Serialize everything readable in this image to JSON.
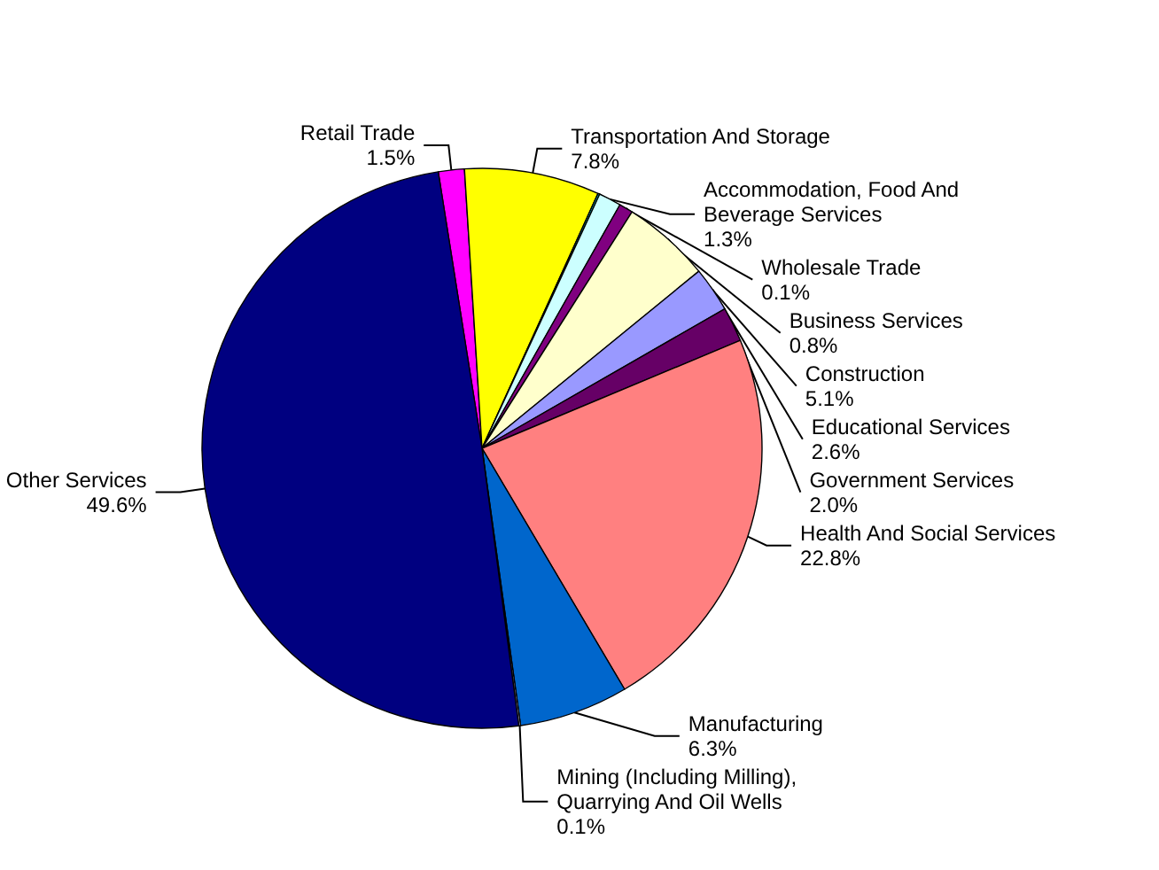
{
  "chart_data": {
    "type": "pie",
    "categories": [
      "Retail Trade",
      "Transportation And Storage",
      "Wholesale Trade",
      "Accommodation, Food And\nBeverage Services",
      "Business Services",
      "Construction",
      "Educational Services",
      "Government Services",
      "Health And Social Services",
      "Manufacturing",
      "Mining (Including Milling),\nQuarrying And Oil Wells",
      "Other Services"
    ],
    "values": [
      1.5,
      7.8,
      0.1,
      1.3,
      0.8,
      5.1,
      2.6,
      2.0,
      22.8,
      6.3,
      0.1,
      49.6
    ],
    "value_labels": [
      "1.5%",
      "7.8%",
      "0.1%",
      "1.3%",
      "0.8%",
      "5.1%",
      "2.6%",
      "2.0%",
      "22.8%",
      "6.3%",
      "0.1%",
      "49.6%"
    ],
    "colors": [
      "#ff00ff",
      "#ffff00",
      "#00ffff",
      "#ccffff",
      "#800080",
      "#ffffcc",
      "#9999ff",
      "#660066",
      "#ff8080",
      "#0066cc",
      "#ccccff",
      "#000080"
    ],
    "legend": false
  }
}
